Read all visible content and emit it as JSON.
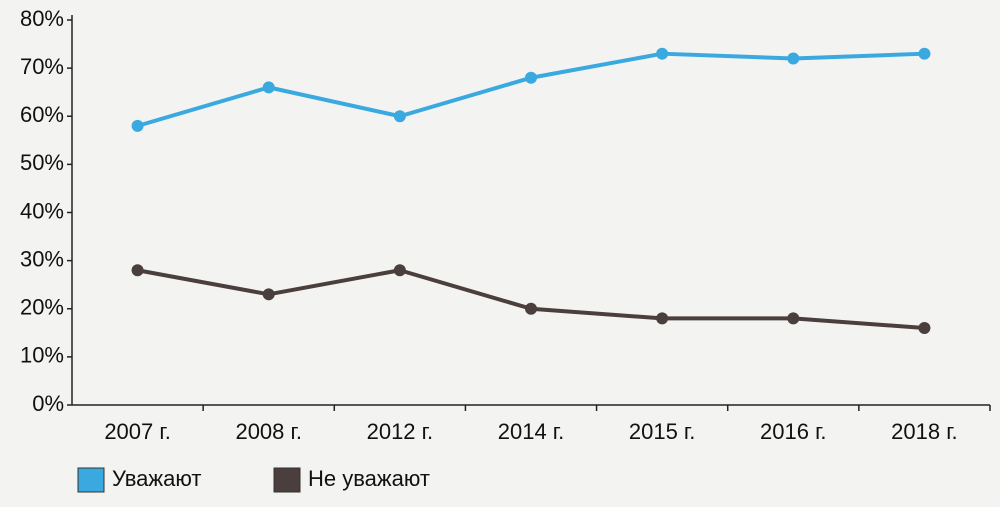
{
  "chart_data": {
    "type": "line",
    "categories": [
      "2007 г.",
      "2008 г.",
      "2012 г.",
      "2014 г.",
      "2015 г.",
      "2016 г.",
      "2018 г."
    ],
    "series": [
      {
        "name": "Уважают",
        "color": "#3aa9e0",
        "values": [
          58,
          66,
          60,
          68,
          73,
          72,
          73
        ]
      },
      {
        "name": "Не уважают",
        "color": "#4a3f3c",
        "values": [
          28,
          23,
          28,
          20,
          18,
          18,
          16
        ]
      }
    ],
    "ylim": [
      0,
      80
    ],
    "yticks": [
      {
        "value": 0,
        "label": "0%"
      },
      {
        "value": 10,
        "label": "10%"
      },
      {
        "value": 20,
        "label": "20%"
      },
      {
        "value": 30,
        "label": "30%"
      },
      {
        "value": 40,
        "label": "40%"
      },
      {
        "value": 50,
        "label": "50%"
      },
      {
        "value": 60,
        "label": "60%"
      },
      {
        "value": 70,
        "label": "70%"
      },
      {
        "value": 80,
        "label": "80%"
      }
    ],
    "grid": false,
    "legend": "bottom-left"
  }
}
